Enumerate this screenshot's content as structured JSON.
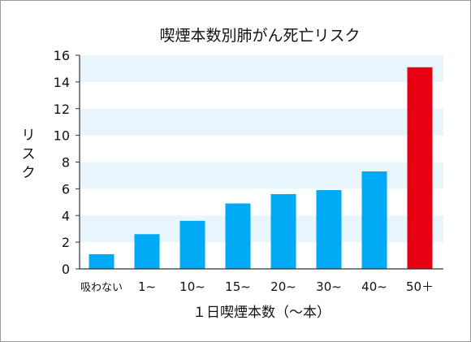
{
  "chart_data": {
    "type": "bar",
    "title": "喫煙本数別肺がん死亡リスク",
    "xlabel": "１日喫煙本数（〜本）",
    "ylabel": "リスク",
    "ylim": [
      0,
      16
    ],
    "yticks": [
      "0",
      "2",
      "4",
      "6",
      "8",
      "10",
      "12",
      "14",
      "16"
    ],
    "categories": [
      "吸わない",
      "1~",
      "10~",
      "15~",
      "20~",
      "30~",
      "40~",
      "50＋"
    ],
    "values": [
      1.1,
      2.6,
      3.6,
      4.9,
      5.6,
      5.9,
      7.3,
      15.1
    ],
    "grid": "alternating horizontal bands",
    "colors": {
      "bar": "#00a9f4",
      "highlight": "#e60012",
      "band": "#e8f5fc",
      "axis": "#333333"
    },
    "highlight_index": 7
  }
}
